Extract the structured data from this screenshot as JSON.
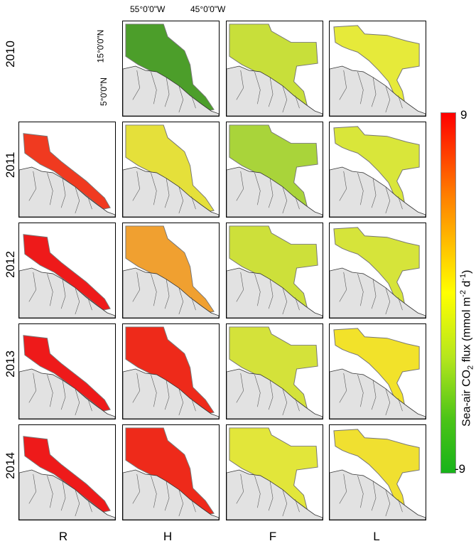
{
  "row_labels": [
    "2010",
    "2011",
    "2012",
    "2013",
    "2014"
  ],
  "column_labels": [
    "R",
    "H",
    "F",
    "L"
  ],
  "axis": {
    "lon_ticks": [
      "55°0'0\"W",
      "45°0'0\"W"
    ],
    "lat_ticks": [
      "15°0'0\"N",
      "5°0'0\"N"
    ]
  },
  "colorbar": {
    "max_label": "9",
    "min_label": "-9",
    "title_prefix": "Sea-air CO",
    "title_sub": "2",
    "title_mid": " flux (mmol m",
    "title_sup1": "-2",
    "title_mid2": " d",
    "title_sup2": "-1",
    "title_end": ")",
    "colors": [
      "#ff0000",
      "#ff7a00",
      "#ffd000",
      "#ffff00",
      "#b5e61d",
      "#4cc417",
      "#17b31a"
    ]
  },
  "land_color": "#e2e2e2",
  "panels": {
    "2010": {
      "R": null,
      "H": "#4c9e2a",
      "F": "#c8df3a",
      "L": "#e6ea3a"
    },
    "2011": {
      "R": "#f03a20",
      "H": "#e5e03a",
      "F": "#a9d43a",
      "L": "#d9e63a"
    },
    "2012": {
      "R": "#ee1a1a",
      "H": "#f0a030",
      "F": "#cde03a",
      "L": "#d6e43a"
    },
    "2013": {
      "R": "#ee1a1a",
      "H": "#ee2a1a",
      "F": "#d4e23a",
      "L": "#f2e22a"
    },
    "2014": {
      "R": "#ee1a1a",
      "H": "#ee2a1a",
      "F": "#e2e63a",
      "L": "#f0e030"
    }
  }
}
